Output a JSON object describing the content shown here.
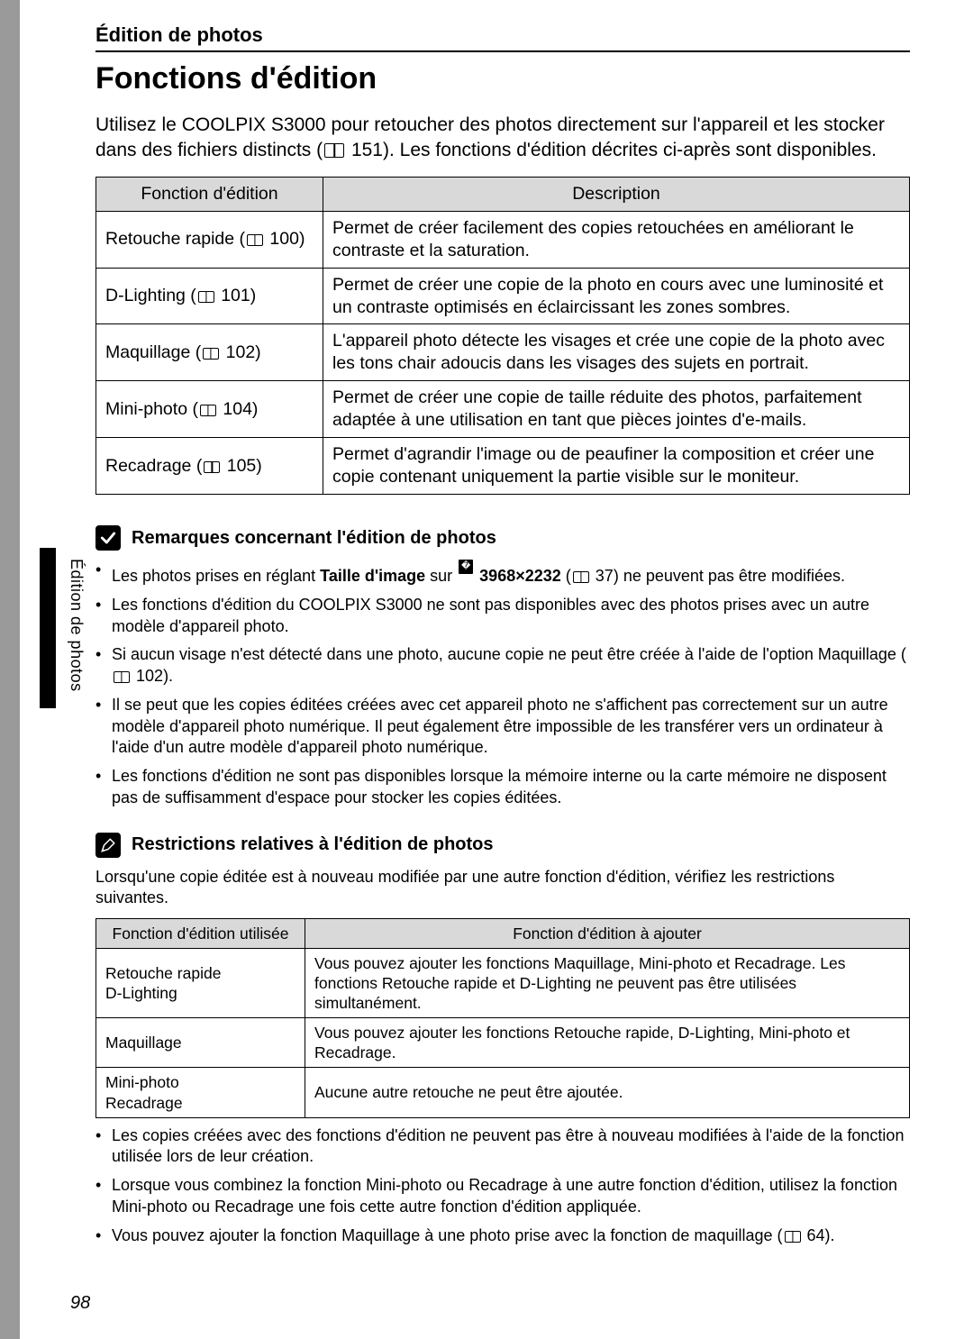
{
  "page": {
    "section_header": "Édition de photos",
    "title": "Fonctions d'édition",
    "intro_p1": "Utilisez le COOLPIX S3000 pour retoucher des photos directement sur l'appareil et les stocker dans des fichiers distincts (",
    "intro_ref": "151",
    "intro_p2": "). Les fonctions d'édition décrites ci-après sont disponibles.",
    "side_tab": "Édition de photos",
    "page_number": "98"
  },
  "table1": {
    "head_col1": "Fonction d'édition",
    "head_col2": "Description",
    "rows": [
      {
        "name": "Retouche rapide (",
        "ref": "100",
        "name_end": ")",
        "desc": "Permet de créer facilement des copies retouchées en améliorant le contraste et la saturation."
      },
      {
        "name": "D-Lighting (",
        "ref": "101",
        "name_end": ")",
        "desc": "Permet de créer une copie de la photo en cours avec une luminosité et un contraste optimisés en éclaircissant les zones sombres."
      },
      {
        "name": "Maquillage (",
        "ref": "102",
        "name_end": ")",
        "desc": "L'appareil photo détecte les visages et crée une copie de la photo avec les tons chair adoucis dans les visages des sujets en portrait."
      },
      {
        "name": "Mini-photo (",
        "ref": "104",
        "name_end": ")",
        "desc": "Permet de créer une copie de taille réduite des photos, parfaitement adaptée à une utilisation en tant que pièces jointes d'e-mails."
      },
      {
        "name": "Recadrage (",
        "ref": "105",
        "name_end": ")",
        "desc": "Permet d'agrandir l'image ou de peaufiner la composition et créer une copie contenant uniquement la partie visible sur le moniteur."
      }
    ]
  },
  "note1": {
    "title": "Remarques concernant l'édition de photos",
    "b1a": "Les photos prises en réglant ",
    "b1b": "Taille d'image",
    "b1c": " sur ",
    "b1_size": "3968×2232",
    "b1d": " (",
    "b1_ref": "37",
    "b1e": ") ne peuvent pas être modifiées.",
    "b2": "Les fonctions d'édition du COOLPIX S3000 ne sont pas disponibles avec des photos prises avec un autre modèle d'appareil photo.",
    "b3a": "Si aucun visage n'est détecté dans une photo, aucune copie ne peut être créée à l'aide de l'option Maquillage (",
    "b3_ref": "102",
    "b3b": ").",
    "b4": "Il se peut que les copies éditées créées avec cet appareil photo ne s'affichent pas correctement sur un autre modèle d'appareil photo numérique. Il peut également être impossible de les transférer vers un ordinateur à l'aide d'un autre modèle d'appareil photo numérique.",
    "b5": "Les fonctions d'édition ne sont pas disponibles lorsque la mémoire interne ou la carte mémoire ne disposent pas de suffisamment d'espace pour stocker les copies éditées."
  },
  "note2": {
    "title": "Restrictions relatives à l'édition de photos",
    "intro": "Lorsqu'une copie éditée est à nouveau modifiée par une autre fonction d'édition, vérifiez les restrictions suivantes."
  },
  "table2": {
    "head_col1": "Fonction d'édition utilisée",
    "head_col2": "Fonction d'édition à ajouter",
    "rows": [
      {
        "name": "Retouche rapide\nD-Lighting",
        "desc": "Vous pouvez ajouter les fonctions Maquillage, Mini-photo et Recadrage. Les fonctions Retouche rapide et D-Lighting ne peuvent pas être utilisées simultanément."
      },
      {
        "name": "Maquillage",
        "desc": "Vous pouvez ajouter les fonctions Retouche rapide, D-Lighting, Mini-photo et Recadrage."
      },
      {
        "name": "Mini-photo\nRecadrage",
        "desc": "Aucune autre retouche ne peut être ajoutée."
      }
    ]
  },
  "post": {
    "b1": "Les copies créées avec des fonctions d'édition ne peuvent pas être à nouveau modifiées à l'aide de la fonction utilisée lors de leur création.",
    "b2": "Lorsque vous combinez la fonction Mini-photo ou Recadrage à une autre fonction d'édition, utilisez la fonction Mini-photo ou Recadrage une fois cette autre fonction d'édition appliquée.",
    "b3a": "Vous pouvez ajouter la fonction Maquillage à une photo prise avec la fonction de maquillage (",
    "b3_ref": "64",
    "b3b": ")."
  }
}
